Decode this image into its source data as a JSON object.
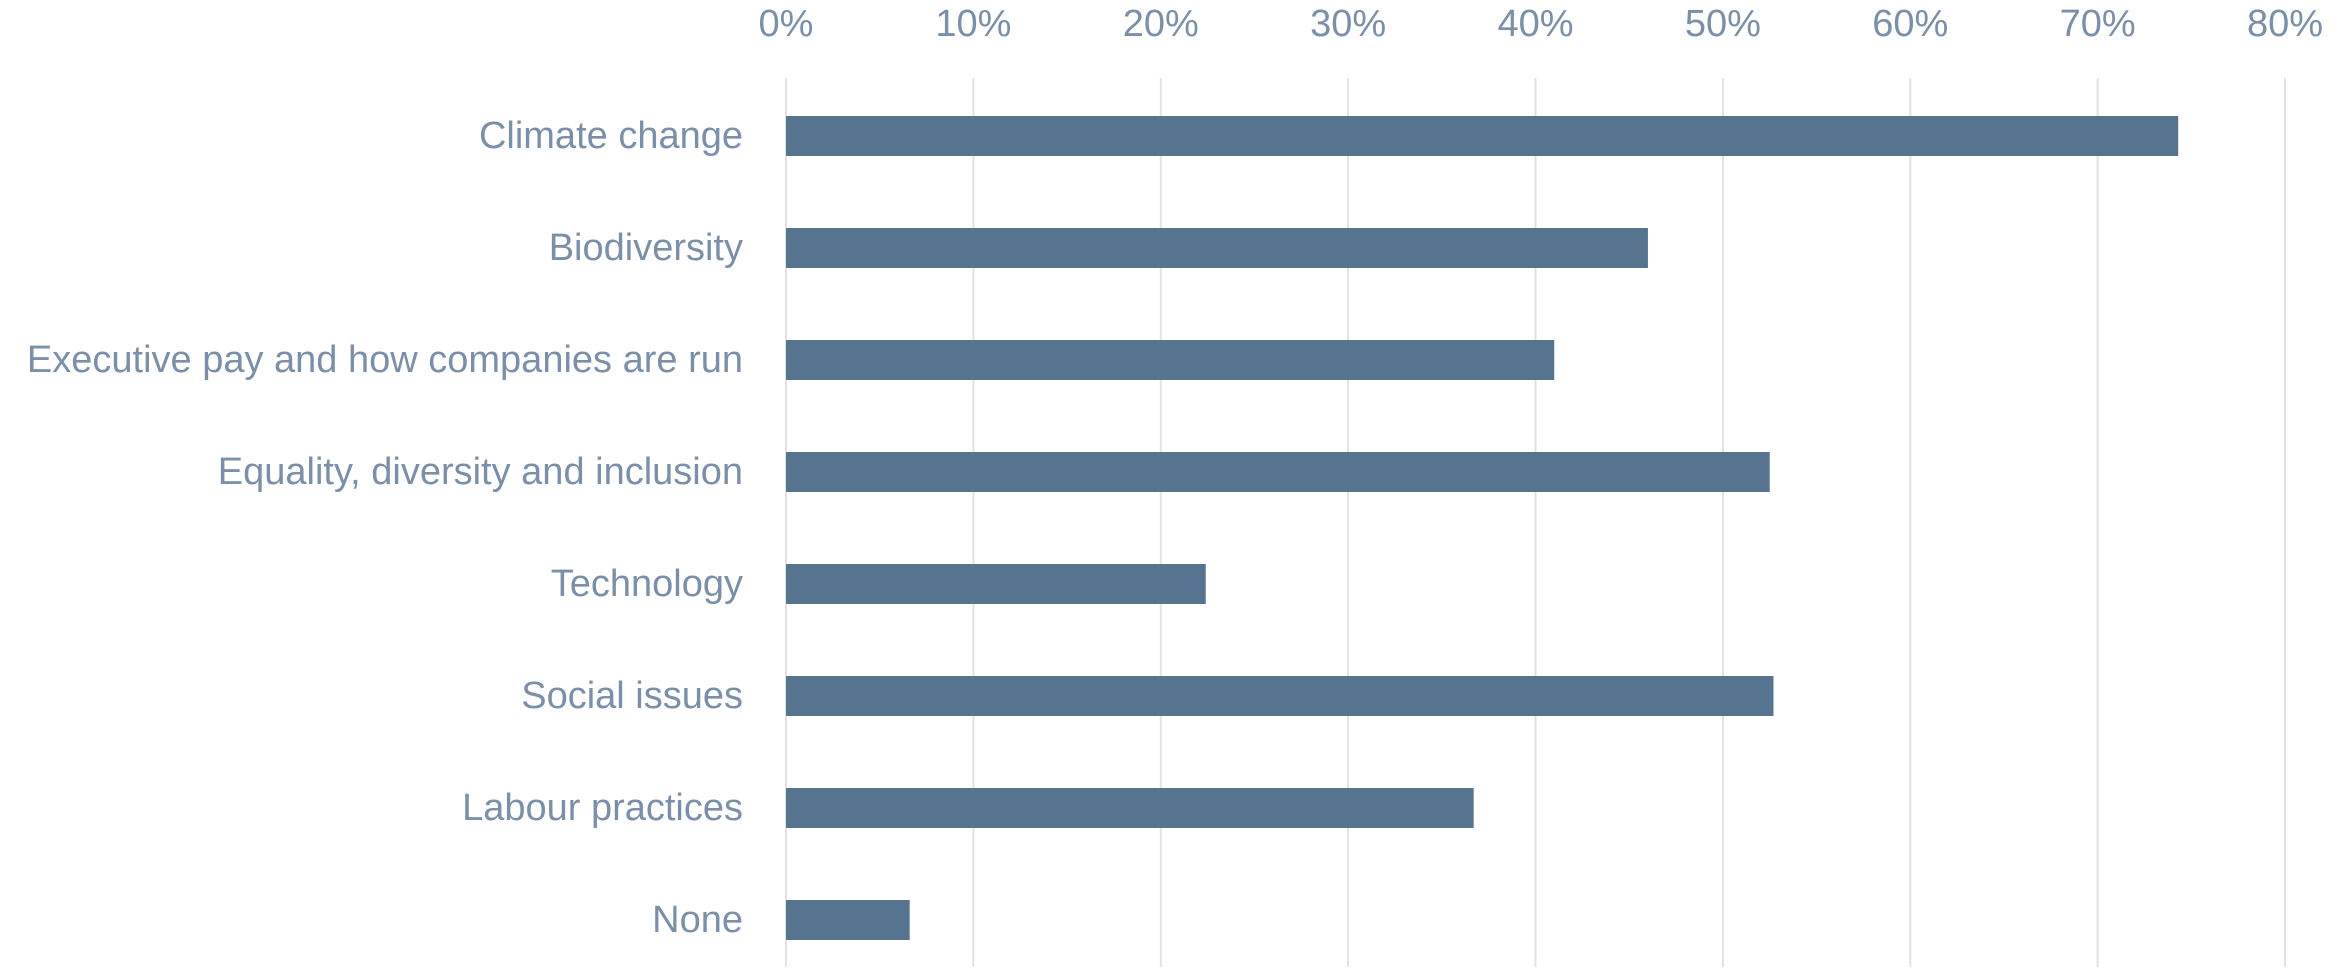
{
  "chart_data": {
    "type": "bar",
    "orientation": "horizontal",
    "title": "",
    "xlabel": "",
    "ylabel": "",
    "xlim": [
      0,
      80
    ],
    "x_ticks": [
      0,
      10,
      20,
      30,
      40,
      50,
      60,
      70,
      80
    ],
    "x_tick_labels": [
      "0%",
      "10%",
      "20%",
      "30%",
      "40%",
      "50%",
      "60%",
      "70%",
      "80%"
    ],
    "x_axis_position": "top",
    "grid": true,
    "legend": "none",
    "categories": [
      "Climate change",
      "Biodiversity",
      "Executive pay and how companies are run",
      "Equality, diversity and inclusion",
      "Technology",
      "Social issues",
      "Labour practices",
      "None"
    ],
    "values": [
      74.3,
      46.0,
      41.0,
      52.5,
      22.4,
      52.7,
      36.7,
      6.6
    ],
    "colors": {
      "bar": "#56748f",
      "label_text": "#7b8fa8",
      "gridline": "#e1e1e1"
    }
  }
}
